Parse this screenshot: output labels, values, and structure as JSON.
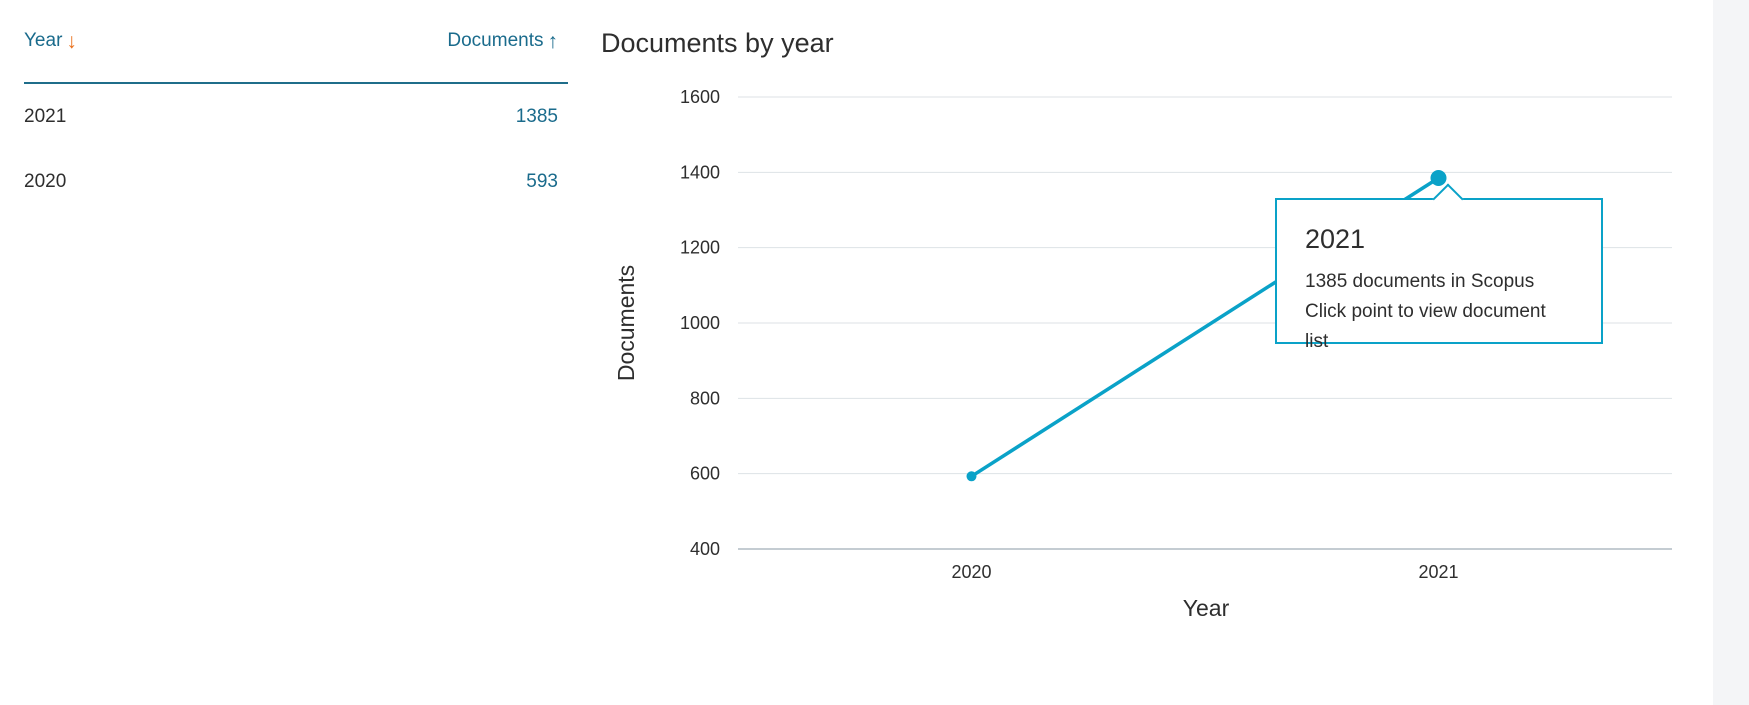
{
  "table": {
    "headers": {
      "year": "Year",
      "documents": "Documents"
    },
    "rows": [
      {
        "year": "2021",
        "documents": "1385"
      },
      {
        "year": "2020",
        "documents": "593"
      }
    ]
  },
  "chart_title": "Documents by year",
  "tooltip": {
    "title": "2021",
    "line1": "1385 documents in Scopus",
    "line2": "Click point to view document list"
  },
  "colors": {
    "line": "#0aa2c8",
    "link": "#1a6b8c",
    "sort_accent": "#e9711c"
  },
  "chart_data": {
    "type": "line",
    "title": "Documents by year",
    "xlabel": "Year",
    "ylabel": "Documents",
    "x": [
      "2020",
      "2021"
    ],
    "series": [
      {
        "values": [
          593,
          1385
        ]
      }
    ],
    "ylim": [
      400,
      1600
    ],
    "yticks": [
      400,
      600,
      800,
      1000,
      1200,
      1400,
      1600
    ],
    "grid": true
  }
}
